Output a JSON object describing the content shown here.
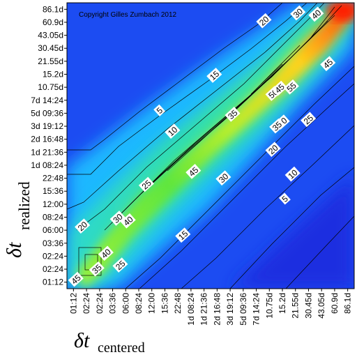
{
  "chart_data": {
    "type": "heatmap",
    "title": "",
    "copyright": "Copyright Gilles Zumbach 2012",
    "xlabel": {
      "symbol": "δt",
      "subscript": "centered"
    },
    "ylabel": {
      "symbol": "δt",
      "subscript": "realized"
    },
    "tick_labels": [
      "01:12",
      "02:24",
      "02:24",
      "03:36",
      "06:00",
      "08:24",
      "12:00",
      "15:36",
      "22:48",
      "1d 08:24",
      "1d 21:36",
      "2d 16:48",
      "3d 19:12",
      "5d 09:36",
      "7d 14:24",
      "10.75d",
      "15.2d",
      "21.55d",
      "30.45d",
      "43.05d",
      "60.9d",
      "86.1d"
    ],
    "x_ticks": [
      "01:12",
      "02:24",
      "02:24",
      "03:36",
      "06:00",
      "08:24",
      "12:00",
      "15:36",
      "22:48",
      "1d 08:24",
      "1d 21:36",
      "2d 16:48",
      "3d 19:12",
      "5d 09:36",
      "7d 14:24",
      "10.75d",
      "15.2d",
      "21.55d",
      "30.45d",
      "43.05d",
      "60.9d",
      "86.1d"
    ],
    "y_ticks": [
      "01:12",
      "02:24",
      "02:24",
      "03:36",
      "06:00",
      "08:24",
      "12:00",
      "15:36",
      "22:48",
      "1d 08:24",
      "1d 21:36",
      "2d 16:48",
      "3d 19:12",
      "5d 09:36",
      "7d 14:24",
      "10.75d",
      "15.2d",
      "21.55d",
      "30.45d",
      "43.05d",
      "60.9d",
      "86.1d"
    ],
    "contour_levels": [
      5,
      10,
      15,
      20,
      25,
      30,
      35,
      40,
      45,
      50,
      55
    ],
    "contour_labels": [
      {
        "text": "5",
        "x": 6.6,
        "y": 13.2
      },
      {
        "text": "10",
        "x": 7.6,
        "y": 11.6
      },
      {
        "text": "15",
        "x": 10.8,
        "y": 15.9
      },
      {
        "text": "20",
        "x": 14.6,
        "y": 20.1
      },
      {
        "text": "30",
        "x": 17.2,
        "y": 20.7
      },
      {
        "text": "40",
        "x": 18.6,
        "y": 20.6
      },
      {
        "text": "35",
        "x": 12.2,
        "y": 12.9
      },
      {
        "text": "50",
        "x": 15.3,
        "y": 14.5
      },
      {
        "text": "45",
        "x": 15.8,
        "y": 14.9
      },
      {
        "text": "55",
        "x": 16.7,
        "y": 15.0
      },
      {
        "text": "40",
        "x": 16.0,
        "y": 12.3
      },
      {
        "text": "35",
        "x": 15.6,
        "y": 12.0
      },
      {
        "text": "25",
        "x": 18.0,
        "y": 12.5
      },
      {
        "text": "45",
        "x": 19.5,
        "y": 16.8
      },
      {
        "text": "20",
        "x": 15.3,
        "y": 10.2
      },
      {
        "text": "10",
        "x": 16.8,
        "y": 8.3
      },
      {
        "text": "5",
        "x": 16.2,
        "y": 6.4
      },
      {
        "text": "45",
        "x": 9.2,
        "y": 8.5
      },
      {
        "text": "30",
        "x": 11.5,
        "y": 8.0
      },
      {
        "text": "25",
        "x": 5.6,
        "y": 7.5
      },
      {
        "text": "40",
        "x": 4.2,
        "y": 4.7
      },
      {
        "text": "30",
        "x": 3.4,
        "y": 4.9
      },
      {
        "text": "20",
        "x": 0.7,
        "y": 4.3
      },
      {
        "text": "15",
        "x": 8.4,
        "y": 3.6
      },
      {
        "text": "40",
        "x": 2.5,
        "y": 2.2
      },
      {
        "text": "35",
        "x": 1.8,
        "y": 1.0
      },
      {
        "text": "25",
        "x": 3.6,
        "y": 1.3
      },
      {
        "text": "45",
        "x": 0.2,
        "y": 0.2
      }
    ],
    "colormap": "jet (blue=low, red=high)",
    "grid": false,
    "legend": "none"
  }
}
